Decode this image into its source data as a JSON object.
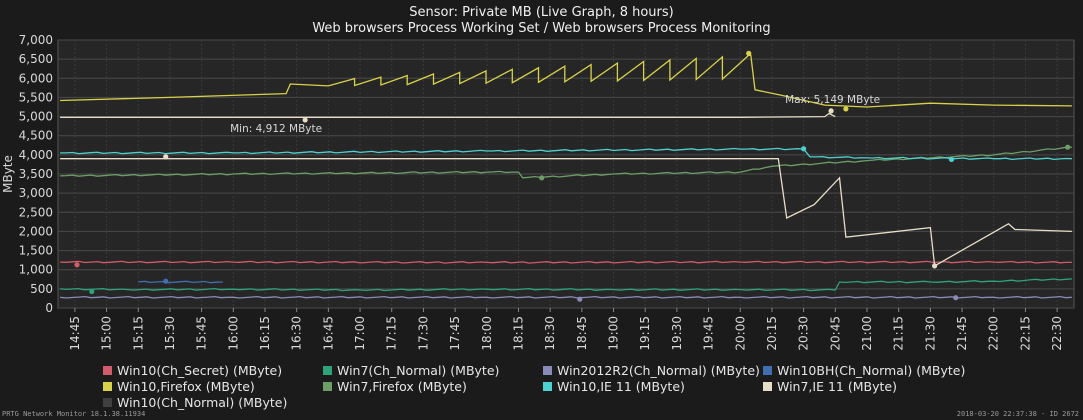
{
  "chart_data": {
    "type": "line",
    "title": "Sensor: Private MB (Live Graph, 8 hours)",
    "subtitle": "Web browsers Process Working Set / Web browsers Process Monitoring",
    "ylabel": "MByte",
    "xlabel": "",
    "ylim": [
      0,
      7000
    ],
    "y_ticks": [
      "0",
      "500",
      "1,000",
      "1,500",
      "2,000",
      "2,500",
      "3,000",
      "3,500",
      "4,000",
      "4,500",
      "5,000",
      "5,500",
      "6,000",
      "6,500",
      "7,000"
    ],
    "x_ticks": [
      "14:45",
      "15:00",
      "15:15",
      "15:30",
      "15:45",
      "16:00",
      "16:15",
      "16:30",
      "16:45",
      "17:00",
      "17:15",
      "17:30",
      "17:45",
      "18:00",
      "18:15",
      "18:30",
      "18:45",
      "19:00",
      "19:15",
      "19:30",
      "19:45",
      "20:00",
      "20:15",
      "20:30",
      "20:45",
      "21:00",
      "21:15",
      "21:30",
      "21:45",
      "22:00",
      "22:15",
      "22:30"
    ],
    "grid": true,
    "legend_placement": "bottom",
    "series": [
      {
        "name": "Win10(Ch_Secret) (MByte)",
        "color": "#d25a6a",
        "points": [
          [
            "14:38",
            1200
          ],
          [
            "16:00",
            1200
          ],
          [
            "18:00",
            1190
          ],
          [
            "20:00",
            1200
          ],
          [
            "22:00",
            1200
          ],
          [
            "22:37",
            1190
          ]
        ],
        "markers": [
          [
            "14:46",
            1130
          ]
        ]
      },
      {
        "name": "Win7(Ch_Normal) (MByte)",
        "color": "#2ea37a",
        "points": [
          [
            "14:38",
            500
          ],
          [
            "15:10",
            480
          ],
          [
            "16:00",
            490
          ],
          [
            "17:00",
            470
          ],
          [
            "18:00",
            490
          ],
          [
            "19:00",
            480
          ],
          [
            "20:00",
            480
          ],
          [
            "20:45",
            470
          ],
          [
            "20:47",
            680
          ],
          [
            "21:30",
            680
          ],
          [
            "22:00",
            700
          ],
          [
            "22:37",
            760
          ]
        ],
        "markers": [
          [
            "14:53",
            430
          ]
        ]
      },
      {
        "name": "Win2012R2(Ch_Normal) (MByte)",
        "color": "#8a8ab8",
        "points": [
          [
            "14:38",
            280
          ],
          [
            "16:00",
            280
          ],
          [
            "18:00",
            280
          ],
          [
            "20:00",
            280
          ],
          [
            "22:00",
            280
          ],
          [
            "22:37",
            280
          ]
        ],
        "markers": [
          [
            "18:44",
            230
          ],
          [
            "21:42",
            270
          ]
        ]
      },
      {
        "name": "Win10BH(Ch_Normal) (MByte)",
        "color": "#3f6fb0",
        "points": [
          [
            "15:15",
            680
          ],
          [
            "15:55",
            680
          ]
        ],
        "markers": [
          [
            "15:28",
            700
          ]
        ]
      },
      {
        "name": "Win10,Firefox (MByte)",
        "color": "#d8d24a",
        "points": [
          [
            "14:38",
            5420
          ],
          [
            "15:30",
            5500
          ],
          [
            "16:25",
            5600
          ],
          [
            "16:27",
            5850
          ],
          [
            "16:45",
            5900
          ],
          [
            "20:05",
            6600
          ],
          [
            "20:07",
            5700
          ],
          [
            "20:20",
            5550
          ],
          [
            "20:40",
            5300
          ],
          [
            "21:00",
            5250
          ],
          [
            "21:30",
            5350
          ],
          [
            "22:00",
            5300
          ],
          [
            "22:37",
            5280
          ]
        ],
        "markers": [
          [
            "20:04",
            6650
          ],
          [
            "20:50",
            5200
          ]
        ]
      },
      {
        "name": "Win7,Firefox (MByte)",
        "color": "#6e9e68",
        "points": [
          [
            "14:38",
            3450
          ],
          [
            "16:00",
            3500
          ],
          [
            "18:00",
            3550
          ],
          [
            "18:15",
            3550
          ],
          [
            "18:17",
            3400
          ],
          [
            "19:00",
            3500
          ],
          [
            "20:00",
            3550
          ],
          [
            "20:15",
            3700
          ],
          [
            "21:00",
            3850
          ],
          [
            "22:00",
            4000
          ],
          [
            "22:37",
            4200
          ]
        ],
        "markers": [
          [
            "18:26",
            3400
          ],
          [
            "22:35",
            4200
          ]
        ]
      },
      {
        "name": "Win10,IE 11 (MByte)",
        "color": "#4fd0d0",
        "points": [
          [
            "14:38",
            4050
          ],
          [
            "16:00",
            4050
          ],
          [
            "18:00",
            4100
          ],
          [
            "20:00",
            4150
          ],
          [
            "20:30",
            4150
          ],
          [
            "20:33",
            3950
          ],
          [
            "21:00",
            3920
          ],
          [
            "22:00",
            3900
          ],
          [
            "22:37",
            3900
          ]
        ],
        "markers": [
          [
            "20:30",
            4160
          ],
          [
            "21:40",
            3880
          ]
        ]
      },
      {
        "name": "Win7,IE 11 (MByte)",
        "color": "#e7ddc8",
        "points": [
          [
            "14:38",
            4980
          ],
          [
            "16:00",
            4980
          ],
          [
            "18:00",
            4980
          ],
          [
            "20:00",
            4980
          ],
          [
            "20:40",
            5000
          ],
          [
            "20:42",
            5080
          ],
          [
            "20:45",
            5000
          ],
          [
            "22:37",
            4980
          ],
          [
            "22:37",
            3900
          ],
          [
            "20:18",
            3900
          ],
          [
            "20:22",
            2350
          ],
          [
            "20:35",
            2700
          ],
          [
            "20:47",
            3400
          ],
          [
            "20:50",
            1850
          ],
          [
            "21:30",
            2100
          ],
          [
            "21:32",
            1100
          ],
          [
            "22:07",
            2200
          ],
          [
            "22:10",
            2050
          ],
          [
            "22:37",
            2000
          ]
        ],
        "draw_order": "custom",
        "markers": [
          [
            "15:28",
            3950
          ],
          [
            "16:34",
            4912
          ],
          [
            "20:43",
            5149
          ],
          [
            "21:32",
            1100
          ]
        ]
      },
      {
        "name": "Win10(Ch_Normal) (MByte)",
        "color": "#404040",
        "points": [],
        "markers": []
      }
    ],
    "annotations": [
      {
        "text": "Min: 4,912 MByte",
        "x": "16:34",
        "y": 4912
      },
      {
        "text": "Max: 5,149 MByte",
        "x": "20:43",
        "y": 5149
      }
    ]
  },
  "footer": {
    "left": "PRTG Network Monitor 18.1.38.11934",
    "right": "2018-03-20 22:37:38 - ID 2672"
  }
}
